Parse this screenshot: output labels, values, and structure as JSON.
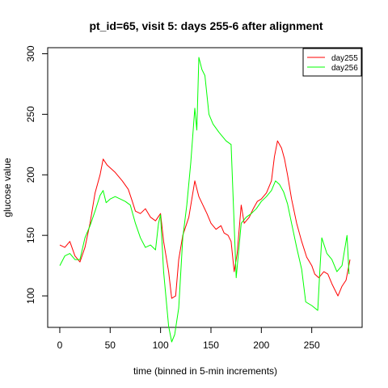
{
  "chart_data": {
    "type": "line",
    "title": "pt_id=65, visit 5: days 255-6 after alignment",
    "xlabel": "time (binned in 5-min increments)",
    "ylabel": "glucose value",
    "xlim": [
      -12,
      300
    ],
    "ylim": [
      74,
      305
    ],
    "x_ticks": [
      0,
      50,
      100,
      150,
      200,
      250
    ],
    "y_ticks": [
      100,
      150,
      200,
      250,
      300
    ],
    "grid": false,
    "legend_position": "top-right",
    "series": [
      {
        "name": "day255",
        "color": "#ff0000",
        "points": [
          [
            0,
            142
          ],
          [
            5,
            140
          ],
          [
            10,
            145
          ],
          [
            15,
            133
          ],
          [
            20,
            128
          ],
          [
            25,
            140
          ],
          [
            30,
            160
          ],
          [
            35,
            185
          ],
          [
            40,
            200
          ],
          [
            43,
            213
          ],
          [
            47,
            208
          ],
          [
            55,
            202
          ],
          [
            62,
            195
          ],
          [
            68,
            188
          ],
          [
            72,
            178
          ],
          [
            75,
            170
          ],
          [
            80,
            168
          ],
          [
            85,
            172
          ],
          [
            90,
            165
          ],
          [
            95,
            162
          ],
          [
            100,
            168
          ],
          [
            103,
            145
          ],
          [
            108,
            120
          ],
          [
            111,
            98
          ],
          [
            115,
            100
          ],
          [
            118,
            130
          ],
          [
            122,
            150
          ],
          [
            128,
            165
          ],
          [
            134,
            195
          ],
          [
            138,
            182
          ],
          [
            142,
            175
          ],
          [
            146,
            168
          ],
          [
            150,
            160
          ],
          [
            155,
            155
          ],
          [
            160,
            158
          ],
          [
            163,
            152
          ],
          [
            167,
            150
          ],
          [
            170,
            145
          ],
          [
            173,
            120
          ],
          [
            176,
            135
          ],
          [
            180,
            175
          ],
          [
            183,
            160
          ],
          [
            188,
            165
          ],
          [
            192,
            172
          ],
          [
            196,
            178
          ],
          [
            200,
            180
          ],
          [
            205,
            185
          ],
          [
            210,
            195
          ],
          [
            213,
            215
          ],
          [
            216,
            228
          ],
          [
            220,
            222
          ],
          [
            223,
            213
          ],
          [
            226,
            200
          ],
          [
            230,
            180
          ],
          [
            235,
            160
          ],
          [
            240,
            145
          ],
          [
            245,
            132
          ],
          [
            250,
            125
          ],
          [
            253,
            118
          ],
          [
            257,
            115
          ],
          [
            262,
            120
          ],
          [
            266,
            118
          ],
          [
            270,
            110
          ],
          [
            273,
            105
          ],
          [
            276,
            100
          ],
          [
            280,
            108
          ],
          [
            284,
            113
          ],
          [
            288,
            130
          ]
        ]
      },
      {
        "name": "day256",
        "color": "#00ff00",
        "points": [
          [
            0,
            125
          ],
          [
            5,
            133
          ],
          [
            10,
            135
          ],
          [
            15,
            130
          ],
          [
            20,
            130
          ],
          [
            25,
            148
          ],
          [
            30,
            158
          ],
          [
            35,
            170
          ],
          [
            40,
            183
          ],
          [
            43,
            187
          ],
          [
            46,
            177
          ],
          [
            50,
            180
          ],
          [
            55,
            182
          ],
          [
            60,
            180
          ],
          [
            65,
            178
          ],
          [
            70,
            175
          ],
          [
            75,
            160
          ],
          [
            80,
            148
          ],
          [
            85,
            140
          ],
          [
            90,
            142
          ],
          [
            95,
            138
          ],
          [
            98,
            160
          ],
          [
            100,
            167
          ],
          [
            103,
            120
          ],
          [
            108,
            75
          ],
          [
            111,
            62
          ],
          [
            114,
            68
          ],
          [
            118,
            90
          ],
          [
            122,
            148
          ],
          [
            126,
            175
          ],
          [
            130,
            210
          ],
          [
            134,
            255
          ],
          [
            136,
            237
          ],
          [
            138,
            297
          ],
          [
            141,
            287
          ],
          [
            144,
            282
          ],
          [
            148,
            250
          ],
          [
            152,
            242
          ],
          [
            158,
            235
          ],
          [
            165,
            228
          ],
          [
            170,
            225
          ],
          [
            175,
            115
          ],
          [
            180,
            160
          ],
          [
            185,
            165
          ],
          [
            190,
            168
          ],
          [
            195,
            172
          ],
          [
            200,
            178
          ],
          [
            205,
            182
          ],
          [
            210,
            187
          ],
          [
            214,
            195
          ],
          [
            218,
            192
          ],
          [
            222,
            186
          ],
          [
            226,
            176
          ],
          [
            230,
            160
          ],
          [
            235,
            140
          ],
          [
            240,
            122
          ],
          [
            244,
            95
          ],
          [
            250,
            92
          ],
          [
            256,
            88
          ],
          [
            258,
            120
          ],
          [
            260,
            148
          ],
          [
            265,
            135
          ],
          [
            270,
            130
          ],
          [
            275,
            120
          ],
          [
            280,
            125
          ],
          [
            285,
            150
          ],
          [
            287,
            118
          ]
        ]
      }
    ]
  }
}
